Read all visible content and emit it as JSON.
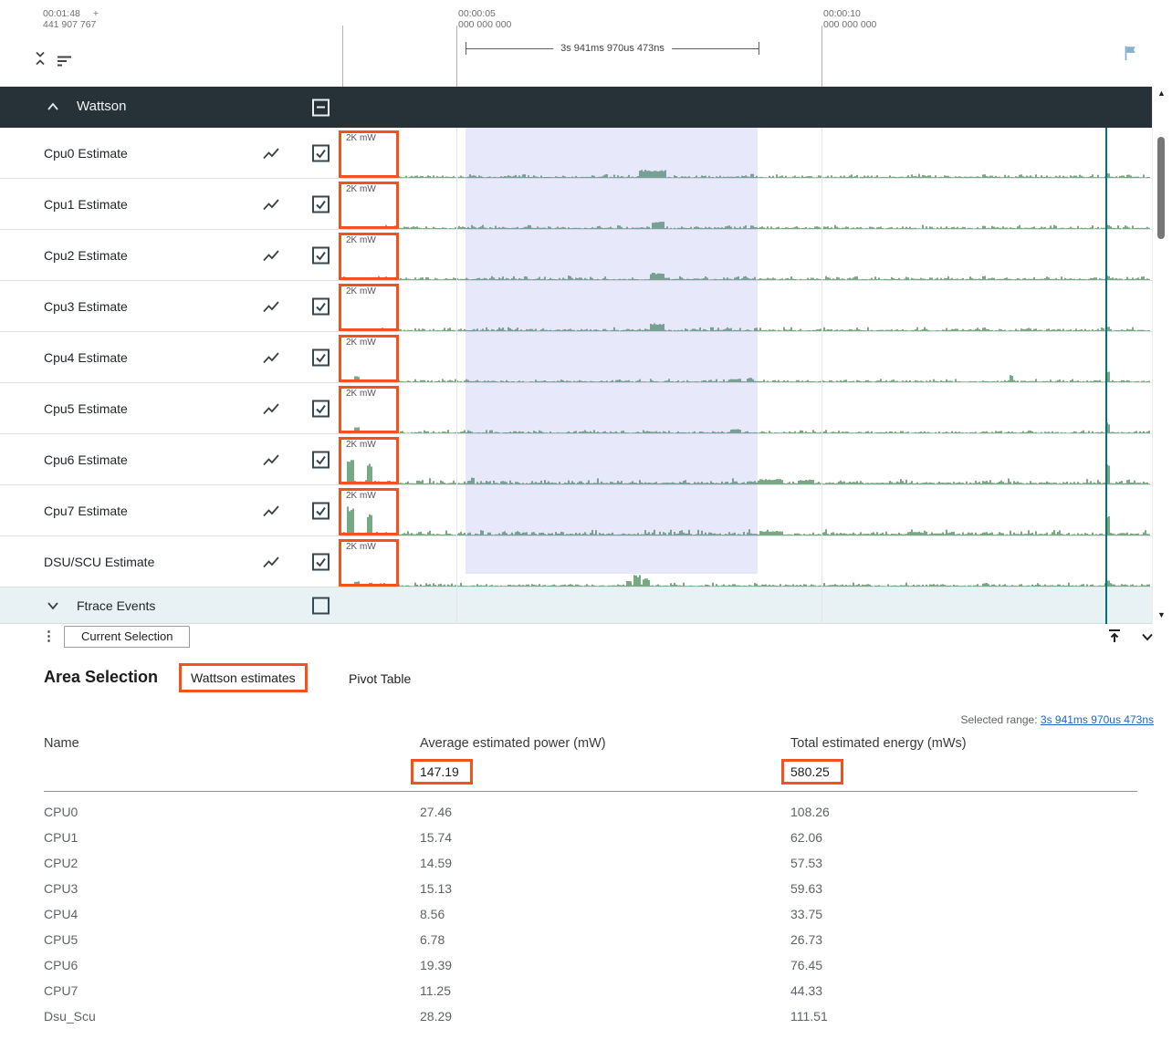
{
  "colors": {
    "annotation": "#f4511e",
    "track_green": "#79a884",
    "selection_overlay": "rgba(121,126,222,0.18)",
    "cursor": "#00737d",
    "header_bg": "#263238",
    "ftrace_bg": "#e8f1f4",
    "link": "#1967d2",
    "flag": "#85b2ca"
  },
  "ruler": {
    "clock": "00:01:48",
    "plus": "+",
    "offset": "441 907 767",
    "ticks": [
      {
        "time": "00:00:05",
        "frac": "000 000 000"
      },
      {
        "time": "00:00:10",
        "frac": "000 000 000"
      }
    ],
    "range_label": "3s 941ms 970us 473ns"
  },
  "group": {
    "name": "Wattson"
  },
  "tracks": [
    {
      "name": "Cpu0 Estimate",
      "unit": "2K mW",
      "seed": 101,
      "noise": 1.0,
      "spikes": [
        [
          196,
          4,
          4
        ],
        [
          324,
          9,
          30
        ],
        [
          446,
          5,
          3
        ],
        [
          520,
          3,
          4
        ],
        [
          640,
          3,
          4
        ],
        [
          700,
          4,
          3
        ],
        [
          836,
          6,
          3
        ],
        [
          858,
          4,
          3
        ]
      ]
    },
    {
      "name": "Cpu1 Estimate",
      "unit": "2K mW",
      "seed": 202,
      "noise": 1.0,
      "spikes": [
        [
          300,
          4,
          4
        ],
        [
          338,
          8,
          14
        ],
        [
          420,
          4,
          3
        ],
        [
          446,
          4,
          3
        ],
        [
          700,
          4,
          3
        ],
        [
          836,
          5,
          3
        ]
      ]
    },
    {
      "name": "Cpu2 Estimate",
      "unit": "2K mW",
      "seed": 303,
      "noise": 1.0,
      "spikes": [
        [
          246,
          5,
          3
        ],
        [
          336,
          8,
          16
        ],
        [
          430,
          4,
          3
        ],
        [
          560,
          4,
          3
        ],
        [
          700,
          5,
          3
        ],
        [
          836,
          5,
          3
        ],
        [
          874,
          4,
          3
        ]
      ]
    },
    {
      "name": "Cpu3 Estimate",
      "unit": "2K mW",
      "seed": 404,
      "noise": 1.0,
      "spikes": [
        [
          180,
          4,
          3
        ],
        [
          336,
          9,
          16
        ],
        [
          402,
          5,
          3
        ],
        [
          450,
          4,
          3
        ],
        [
          700,
          4,
          3
        ],
        [
          836,
          5,
          3
        ]
      ]
    },
    {
      "name": "Cpu4 Estimate",
      "unit": "2K mW",
      "seed": 505,
      "noise": 0.85,
      "spikes": [
        [
          12,
          7,
          5
        ],
        [
          300,
          3,
          4
        ],
        [
          424,
          4,
          12
        ],
        [
          442,
          5,
          6
        ],
        [
          600,
          3,
          4
        ],
        [
          729,
          8,
          3
        ],
        [
          836,
          12,
          3
        ]
      ]
    },
    {
      "name": "Cpu5 Estimate",
      "unit": "2K mW",
      "seed": 606,
      "noise": 0.85,
      "spikes": [
        [
          12,
          7,
          5
        ],
        [
          160,
          4,
          3
        ],
        [
          304,
          3,
          4
        ],
        [
          424,
          5,
          12
        ],
        [
          610,
          3,
          4
        ],
        [
          836,
          12,
          3
        ]
      ]
    },
    {
      "name": "Cpu6 Estimate",
      "unit": "2K mW",
      "seed": 707,
      "noise": 1.5,
      "spikes": [
        [
          4,
          30,
          7
        ],
        [
          26,
          23,
          6
        ],
        [
          140,
          8,
          3
        ],
        [
          172,
          4,
          3
        ],
        [
          456,
          6,
          26
        ],
        [
          498,
          5,
          18
        ],
        [
          700,
          4,
          6
        ],
        [
          836,
          22,
          4
        ],
        [
          858,
          6,
          3
        ]
      ]
    },
    {
      "name": "Cpu7 Estimate",
      "unit": "2K mW",
      "seed": 808,
      "noise": 1.5,
      "spikes": [
        [
          4,
          32,
          7
        ],
        [
          26,
          25,
          6
        ],
        [
          150,
          6,
          3
        ],
        [
          456,
          5,
          26
        ],
        [
          620,
          4,
          10
        ],
        [
          700,
          4,
          6
        ],
        [
          836,
          24,
          4
        ]
      ]
    },
    {
      "name": "DSU/SCU Estimate",
      "unit": "2K mW",
      "seed": 909,
      "noise": 1.0,
      "spikes": [
        [
          12,
          6,
          5
        ],
        [
          310,
          7,
          6
        ],
        [
          318,
          13,
          8
        ],
        [
          328,
          9,
          8
        ],
        [
          450,
          4,
          3
        ],
        [
          700,
          4,
          6
        ],
        [
          836,
          8,
          4
        ]
      ]
    }
  ],
  "ftrace": {
    "name": "Ftrace Events"
  },
  "tabbar": {
    "tab": "Current Selection"
  },
  "details": {
    "title": "Area Selection",
    "tabs": [
      {
        "label": "Wattson estimates"
      },
      {
        "label": "Pivot Table"
      }
    ],
    "selected_range_label": "Selected range:",
    "selected_range_value": "3s 941ms 970us 473ns",
    "table": {
      "columns": [
        "Name",
        "Average estimated power (mW)",
        "Total estimated energy (mWs)"
      ],
      "totals": {
        "avg": "147.19",
        "total": "580.25"
      },
      "rows": [
        {
          "name": "CPU0",
          "avg": "27.46",
          "total": "108.26"
        },
        {
          "name": "CPU1",
          "avg": "15.74",
          "total": "62.06"
        },
        {
          "name": "CPU2",
          "avg": "14.59",
          "total": "57.53"
        },
        {
          "name": "CPU3",
          "avg": "15.13",
          "total": "59.63"
        },
        {
          "name": "CPU4",
          "avg": "8.56",
          "total": "33.75"
        },
        {
          "name": "CPU5",
          "avg": "6.78",
          "total": "26.73"
        },
        {
          "name": "CPU6",
          "avg": "19.39",
          "total": "76.45"
        },
        {
          "name": "CPU7",
          "avg": "11.25",
          "total": "44.33"
        },
        {
          "name": "Dsu_Scu",
          "avg": "28.29",
          "total": "111.51"
        }
      ]
    }
  }
}
